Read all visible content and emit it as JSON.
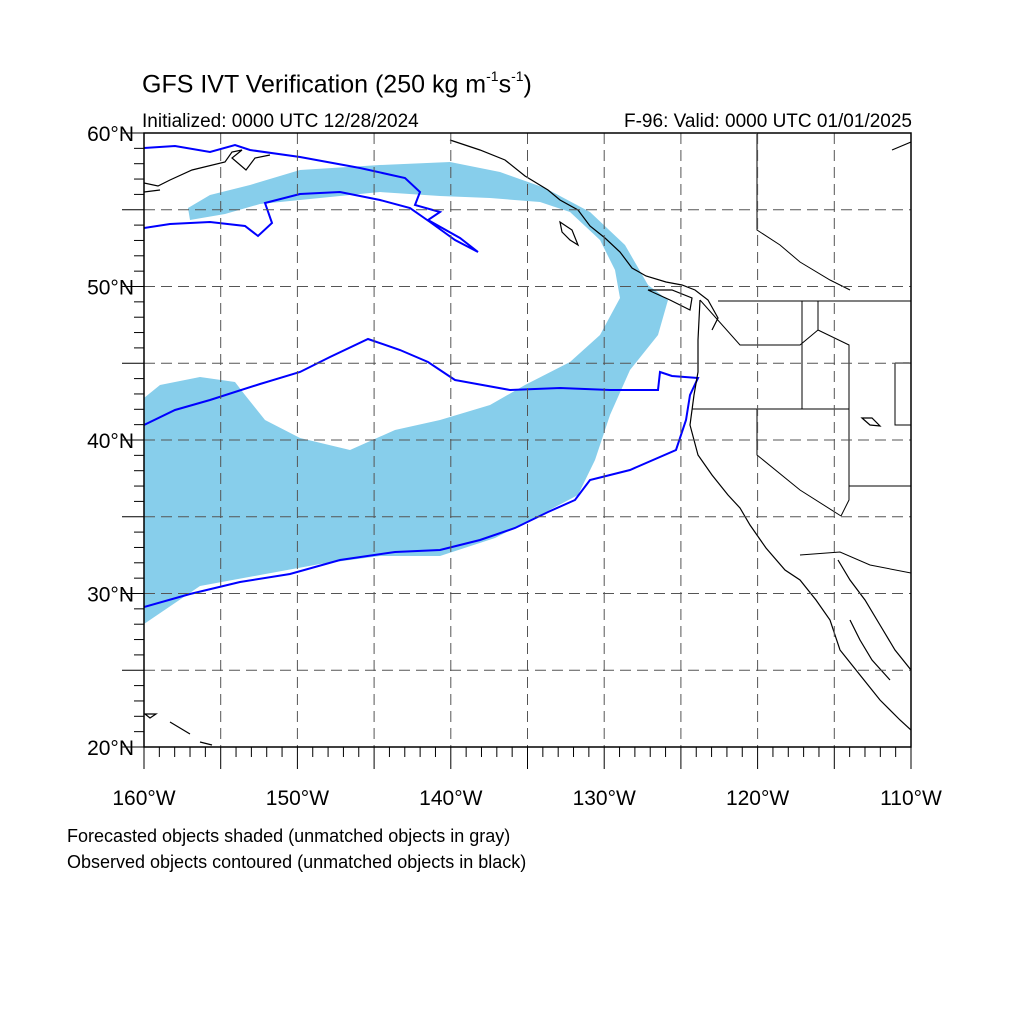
{
  "title": {
    "main": "GFS IVT Verification (250 kg m",
    "sup1": "-1",
    "mid": "s",
    "sup2": "-1",
    "end": ")"
  },
  "initialized": "Initialized: 0000 UTC 12/28/2024",
  "valid": "F-96: Valid: 0000 UTC 01/01/2025",
  "notes": {
    "forecast": "Forecasted objects shaded (unmatched objects in gray)",
    "observed": "Observed objects contoured (unmatched objects in black)"
  },
  "map": {
    "lon_range": [
      -160,
      -110
    ],
    "lat_range": [
      20,
      60
    ],
    "lat_labels": [
      "60°N",
      "50°N",
      "40°N",
      "30°N",
      "20°N"
    ],
    "lon_labels": [
      "160°W",
      "150°W",
      "140°W",
      "130°W",
      "120°W",
      "110°W"
    ],
    "colors": {
      "forecast_fill": "#87ceeb",
      "observed_contour": "#0000ff",
      "coastline": "#000000",
      "grid": "#555555"
    }
  }
}
